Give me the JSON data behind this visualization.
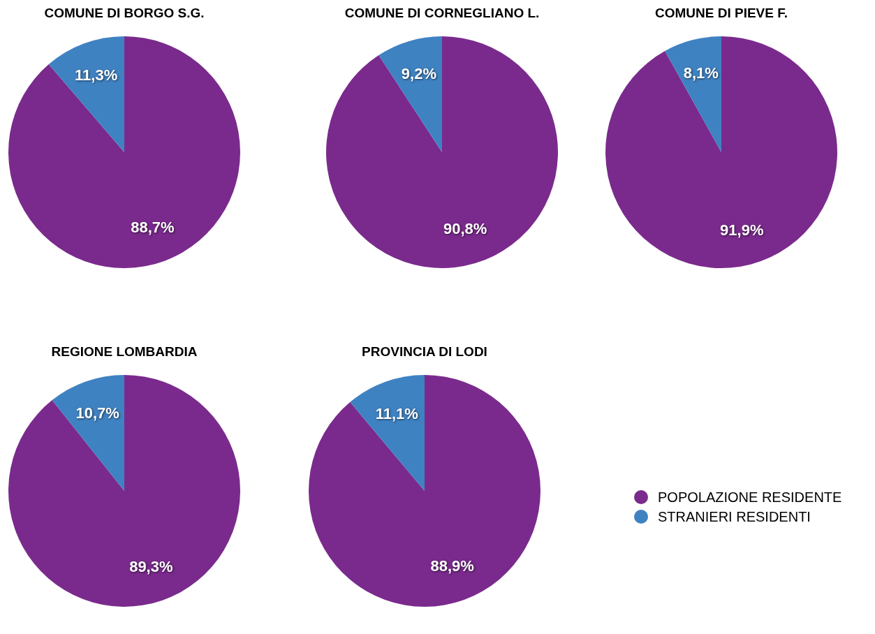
{
  "chart_data": [
    {
      "type": "pie",
      "title": "COMUNE DI BORGO S.G.",
      "values": [
        88.7,
        11.3
      ],
      "colors": [
        "#7a2a8c",
        "#3f82c2"
      ],
      "value_labels": [
        "88,7%",
        "11,3%"
      ]
    },
    {
      "type": "pie",
      "title": "COMUNE DI CORNEGLIANO L.",
      "values": [
        90.8,
        9.2
      ],
      "colors": [
        "#7a2a8c",
        "#3f82c2"
      ],
      "value_labels": [
        "90,8%",
        "9,2%"
      ]
    },
    {
      "type": "pie",
      "title": "COMUNE DI PIEVE F.",
      "values": [
        91.9,
        8.1
      ],
      "colors": [
        "#7a2a8c",
        "#3f82c2"
      ],
      "value_labels": [
        "91,9%",
        "8,1%"
      ]
    },
    {
      "type": "pie",
      "title": "REGIONE LOMBARDIA",
      "values": [
        89.3,
        10.7
      ],
      "colors": [
        "#7a2a8c",
        "#3f82c2"
      ],
      "value_labels": [
        "89,3%",
        "10,7%"
      ]
    },
    {
      "type": "pie",
      "title": "PROVINCIA DI LODI",
      "categories": [
        "POPOLAZIONE RESIDENTE",
        "STRANIERI RESIDENTI"
      ],
      "values": [
        88.9,
        11.1
      ],
      "colors": [
        "#7a2a8c",
        "#3f82c2"
      ],
      "value_labels": [
        "88,9%",
        "11,1%"
      ],
      "legend": "right"
    }
  ]
}
